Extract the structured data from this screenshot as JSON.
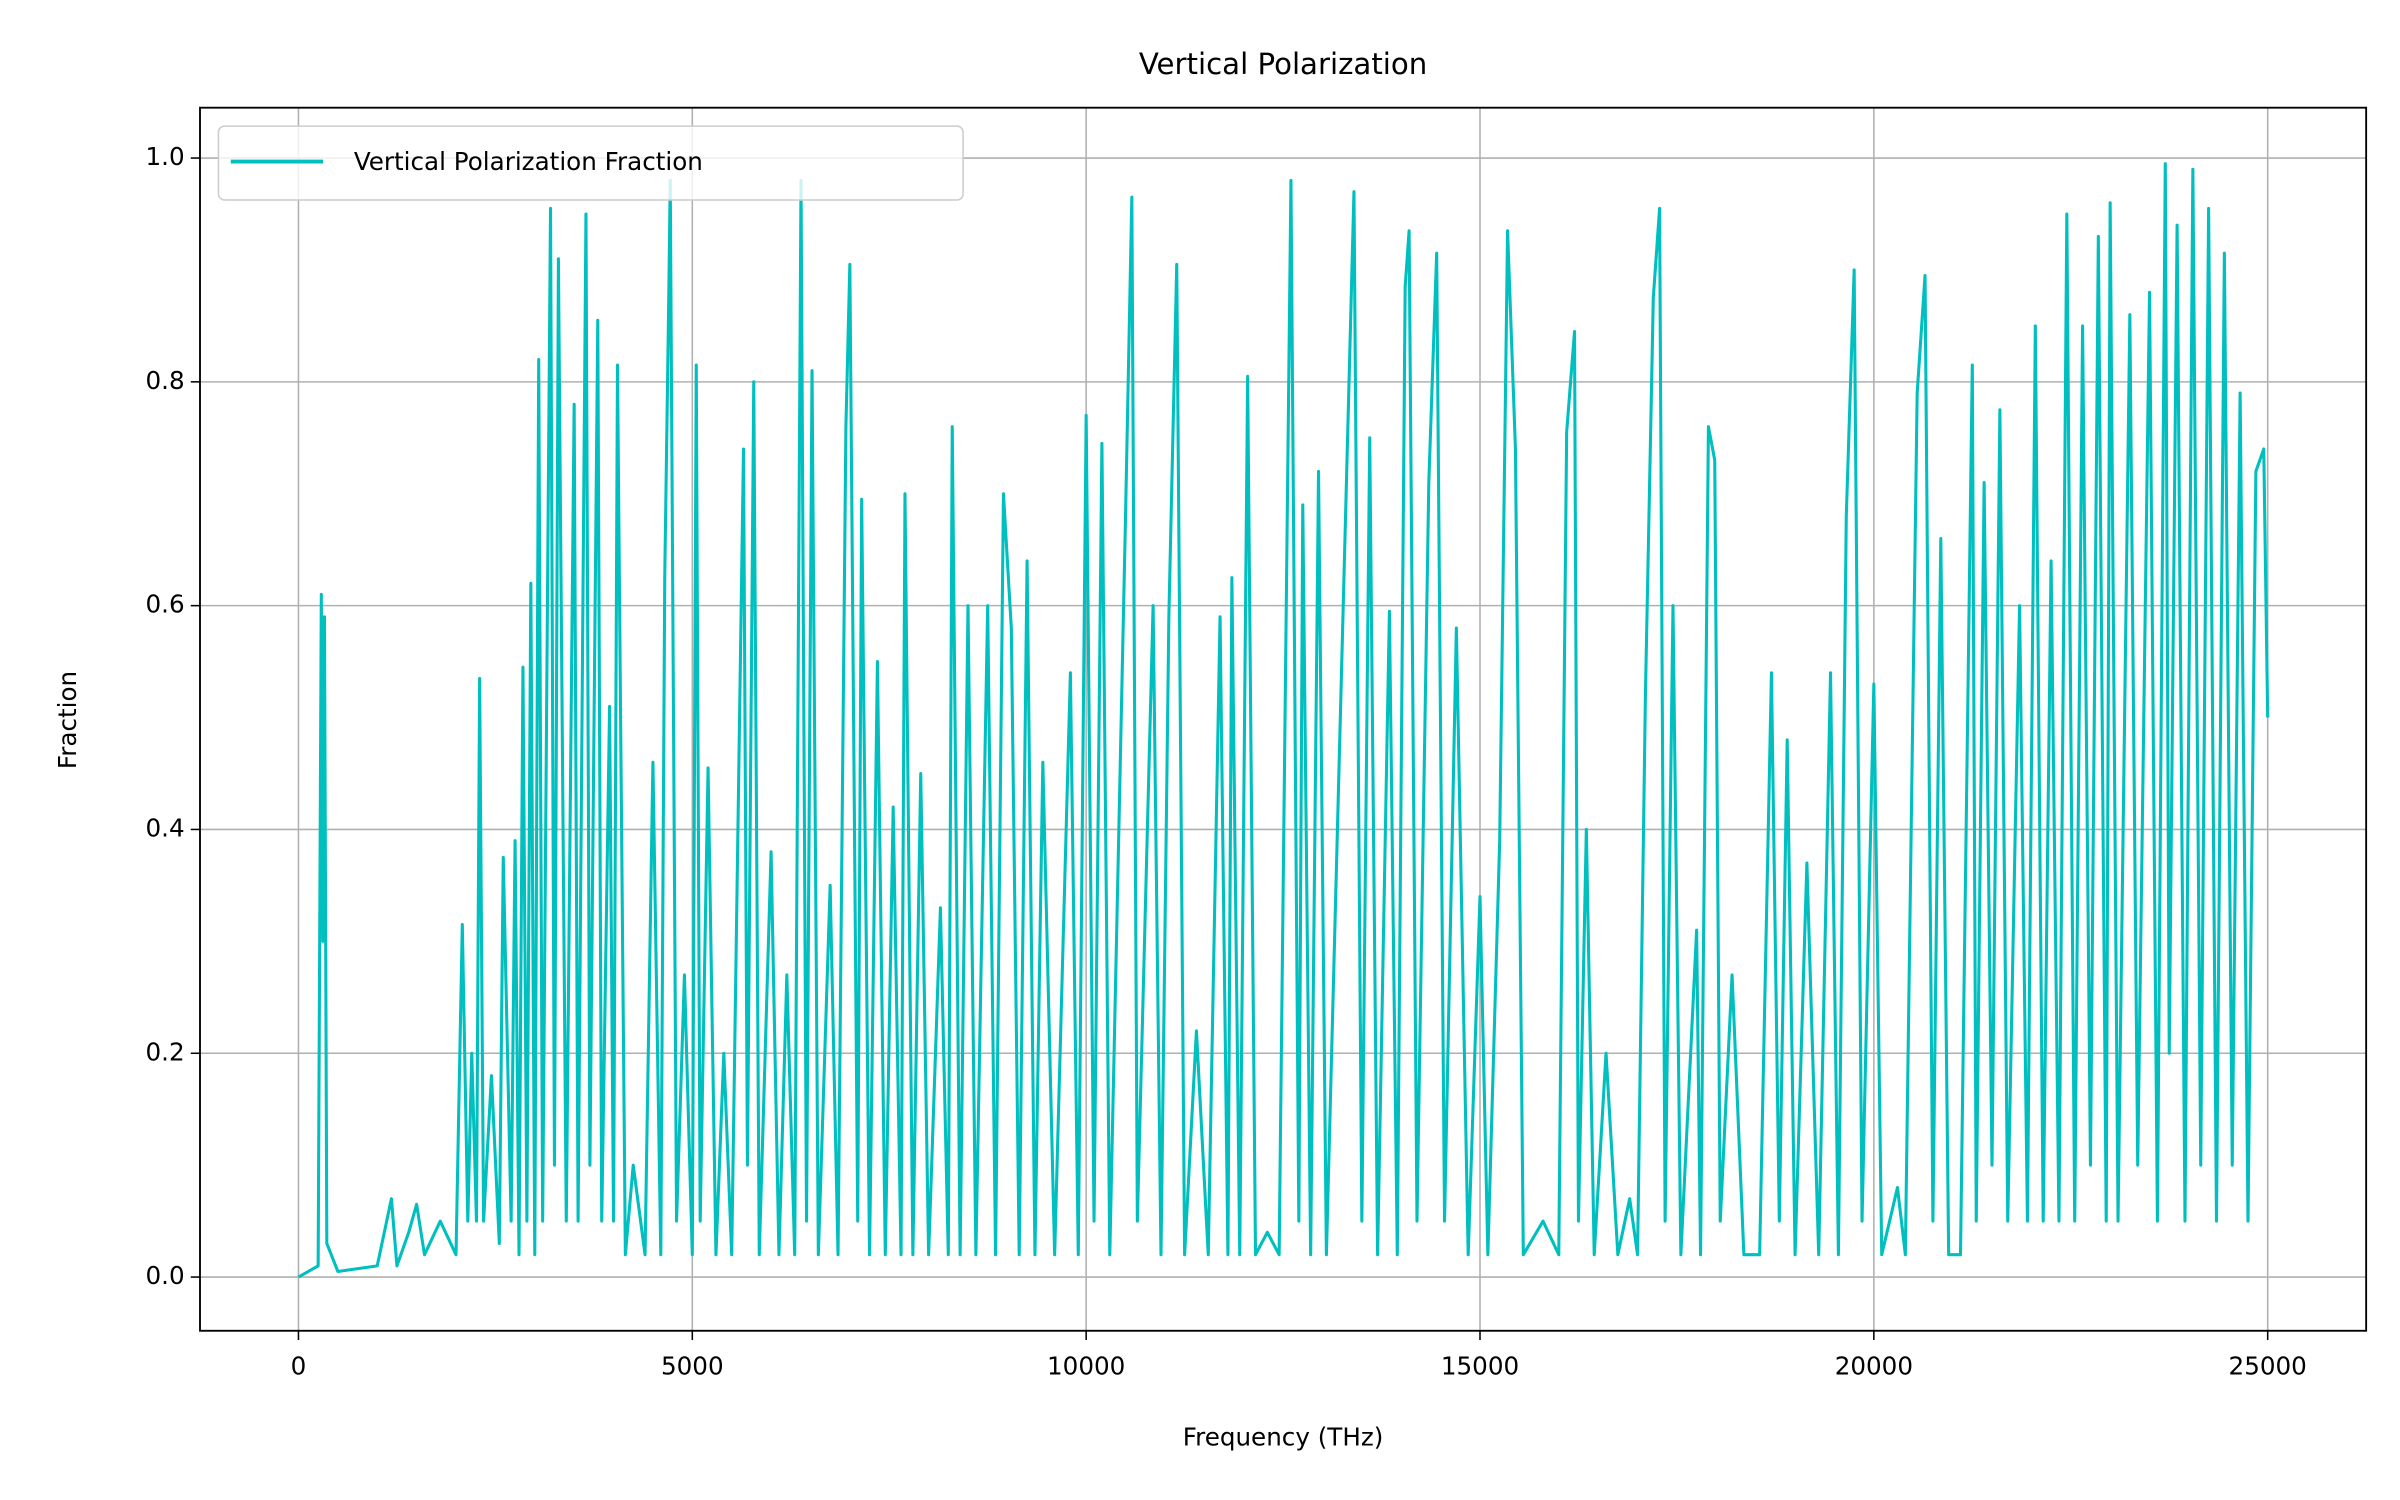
{
  "chart_data": {
    "type": "line",
    "title": "Vertical Polarization",
    "xlabel": "Frequency (THz)",
    "ylabel": "Fraction",
    "x": [
      0,
      250,
      290,
      310,
      330,
      360,
      500,
      1000,
      1180,
      1250,
      1400,
      1500,
      1600,
      1800,
      2000,
      2080,
      2150,
      2200,
      2260,
      2300,
      2350,
      2450,
      2550,
      2600,
      2700,
      2750,
      2800,
      2850,
      2900,
      2950,
      3000,
      3050,
      3100,
      3200,
      3250,
      3300,
      3400,
      3500,
      3550,
      3650,
      3700,
      3800,
      3850,
      3950,
      4000,
      4050,
      4150,
      4250,
      4400,
      4500,
      4600,
      4650,
      4700,
      4720,
      4800,
      4900,
      5000,
      5050,
      5100,
      5200,
      5300,
      5400,
      5500,
      5650,
      5700,
      5780,
      5850,
      6000,
      6100,
      6200,
      6300,
      6380,
      6450,
      6520,
      6600,
      6750,
      6850,
      6950,
      7000,
      7100,
      7150,
      7250,
      7350,
      7450,
      7550,
      7650,
      7700,
      7800,
      7900,
      8000,
      8150,
      8250,
      8300,
      8400,
      8500,
      8600,
      8750,
      8850,
      8950,
      9050,
      9150,
      9250,
      9350,
      9450,
      9600,
      9800,
      9900,
      10000,
      10100,
      10200,
      10300,
      10500,
      10580,
      10650,
      10850,
      10950,
      11050,
      11150,
      11250,
      11400,
      11550,
      11700,
      11800,
      11850,
      11950,
      12050,
      12150,
      12300,
      12450,
      12600,
      12700,
      12750,
      12850,
      12950,
      13050,
      13400,
      13500,
      13600,
      13700,
      13850,
      13950,
      14050,
      14100,
      14200,
      14350,
      14450,
      14550,
      14700,
      14850,
      15000,
      15100,
      15250,
      15350,
      15450,
      15550,
      15800,
      16000,
      16100,
      16200,
      16250,
      16350,
      16450,
      16600,
      16750,
      16900,
      17000,
      17100,
      17200,
      17280,
      17350,
      17450,
      17550,
      17750,
      17800,
      17900,
      17980,
      18050,
      18200,
      18350,
      18550,
      18700,
      18800,
      18900,
      19000,
      19150,
      19300,
      19450,
      19550,
      19650,
      19750,
      19850,
      20000,
      20100,
      20300,
      20400,
      20550,
      20650,
      20750,
      20850,
      20950,
      21100,
      21250,
      21300,
      21400,
      21500,
      21600,
      21700,
      21850,
      21950,
      22050,
      22150,
      22250,
      22350,
      22450,
      22550,
      22650,
      22750,
      22850,
      22950,
      23000,
      23100,
      23250,
      23350,
      23500,
      23600,
      23700,
      23750,
      23850,
      23950,
      24050,
      24150,
      24250,
      24350,
      24450,
      24550,
      24650,
      24750,
      24850,
      24950,
      25000
    ],
    "series": [
      {
        "name": "Vertical Polarization Fraction",
        "color": "#00bfbf",
        "values": [
          0,
          0.01,
          0.61,
          0.3,
          0.59,
          0.03,
          0.005,
          0.01,
          0.07,
          0.01,
          0.04,
          0.065,
          0.02,
          0.05,
          0.02,
          0.315,
          0.05,
          0.2,
          0.05,
          0.535,
          0.05,
          0.18,
          0.03,
          0.375,
          0.05,
          0.39,
          0.02,
          0.545,
          0.05,
          0.62,
          0.02,
          0.82,
          0.05,
          0.955,
          0.1,
          0.91,
          0.05,
          0.78,
          0.05,
          0.95,
          0.1,
          0.855,
          0.05,
          0.51,
          0.05,
          0.815,
          0.02,
          0.1,
          0.02,
          0.46,
          0.02,
          0.625,
          0.87,
          0.98,
          0.05,
          0.27,
          0.02,
          0.815,
          0.05,
          0.455,
          0.02,
          0.2,
          0.02,
          0.74,
          0.1,
          0.8,
          0.02,
          0.38,
          0.02,
          0.27,
          0.02,
          0.98,
          0.05,
          0.81,
          0.02,
          0.35,
          0.02,
          0.76,
          0.905,
          0.05,
          0.695,
          0.02,
          0.55,
          0.02,
          0.42,
          0.02,
          0.7,
          0.02,
          0.45,
          0.02,
          0.33,
          0.02,
          0.76,
          0.02,
          0.6,
          0.02,
          0.6,
          0.02,
          0.7,
          0.58,
          0.02,
          0.64,
          0.02,
          0.46,
          0.02,
          0.54,
          0.02,
          0.77,
          0.05,
          0.745,
          0.02,
          0.68,
          0.965,
          0.05,
          0.6,
          0.02,
          0.59,
          0.905,
          0.02,
          0.22,
          0.02,
          0.59,
          0.02,
          0.625,
          0.02,
          0.805,
          0.02,
          0.04,
          0.02,
          0.98,
          0.05,
          0.69,
          0.02,
          0.72,
          0.02,
          0.97,
          0.05,
          0.75,
          0.02,
          0.595,
          0.02,
          0.885,
          0.935,
          0.05,
          0.71,
          0.915,
          0.05,
          0.58,
          0.02,
          0.34,
          0.02,
          0.39,
          0.935,
          0.74,
          0.02,
          0.05,
          0.02,
          0.755,
          0.845,
          0.05,
          0.4,
          0.02,
          0.2,
          0.02,
          0.07,
          0.02,
          0.52,
          0.875,
          0.955,
          0.05,
          0.6,
          0.02,
          0.31,
          0.02,
          0.76,
          0.73,
          0.05,
          0.27,
          0.02,
          0.02,
          0.54,
          0.05,
          0.48,
          0.02,
          0.37,
          0.02,
          0.54,
          0.02,
          0.68,
          0.9,
          0.05,
          0.53,
          0.02,
          0.08,
          0.02,
          0.79,
          0.895,
          0.05,
          0.66,
          0.02,
          0.02,
          0.815,
          0.05,
          0.71,
          0.1,
          0.775,
          0.05,
          0.6,
          0.05,
          0.85,
          0.05,
          0.64,
          0.05,
          0.95,
          0.05,
          0.85,
          0.1,
          0.93,
          0.05,
          0.96,
          0.05,
          0.86,
          0.1,
          0.88,
          0.05,
          0.995,
          0.2,
          0.94,
          0.05,
          0.99,
          0.1,
          0.955,
          0.05,
          0.915,
          0.1,
          0.79,
          0.05,
          0.72,
          0.74,
          0.5
        ]
      }
    ],
    "xlim": [
      -1250,
      26250
    ],
    "ylim": [
      -0.048,
      1.045
    ],
    "xticks": [
      0,
      5000,
      10000,
      15000,
      20000,
      25000
    ],
    "yticks": [
      {
        "value": 0,
        "label": "0.0"
      },
      0.2,
      0.4,
      0.6,
      0.8,
      {
        "value": 1,
        "label": "1.0"
      }
    ],
    "grid": true,
    "legend": "upper left"
  }
}
